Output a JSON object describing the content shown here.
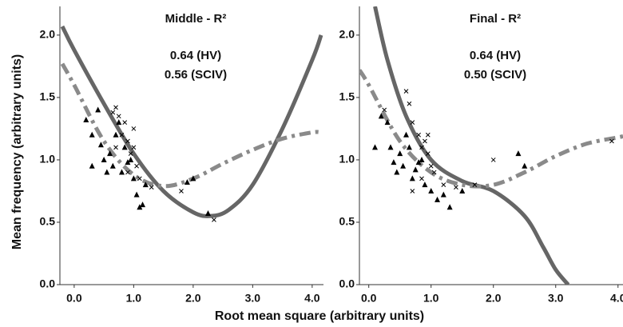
{
  "ylabel": "Mean frequency (arbitrary units)",
  "xlabel": "Root mean square (arbitrary units)",
  "chart_data": [
    {
      "type": "scatter",
      "title": "Middle - R²",
      "annotations": [
        "0.64 (HV)",
        "0.56 (SCIV)"
      ],
      "xlim": [
        -0.24,
        4.19
      ],
      "ylim": [
        0,
        2.23
      ],
      "xticks": [
        {
          "value": 0,
          "label": "0.0"
        },
        {
          "value": 1,
          "label": "1.0"
        },
        {
          "value": 2,
          "label": "2.0"
        },
        {
          "value": 3,
          "label": "3.0"
        },
        {
          "value": 4,
          "label": "4.0"
        }
      ],
      "yticks": [
        {
          "value": 0,
          "label": "0.0"
        },
        {
          "value": 0.5,
          "label": "0.5"
        },
        {
          "value": 1,
          "label": "1.0"
        },
        {
          "value": 1.5,
          "label": "1.5"
        },
        {
          "value": 2,
          "label": "2.0"
        }
      ],
      "series": [
        {
          "marker": "triangle",
          "color": "#000000",
          "x": [
            0.2,
            0.3,
            0.4,
            0.45,
            0.5,
            0.55,
            0.6,
            0.65,
            0.7,
            0.75,
            0.8,
            0.85,
            0.9,
            0.95,
            1.0,
            1.05,
            1.1,
            1.15,
            1.2,
            0.3,
            1.9,
            2.0,
            2.25
          ],
          "values": [
            1.32,
            1.2,
            1.4,
            1.12,
            1.0,
            0.9,
            1.05,
            0.95,
            1.2,
            1.3,
            0.9,
            1.1,
            0.98,
            1.0,
            0.85,
            0.72,
            0.62,
            0.64,
            0.8,
            0.95,
            0.82,
            0.85,
            0.57
          ]
        },
        {
          "marker": "cross",
          "color": "#000000",
          "x": [
            0.65,
            0.7,
            0.75,
            0.8,
            0.85,
            0.9,
            0.95,
            1.0,
            0.9,
            1.05,
            1.1,
            0.7,
            1.3,
            1.8,
            2.35,
            1.0
          ],
          "values": [
            1.38,
            1.42,
            1.35,
            1.2,
            1.3,
            1.15,
            1.05,
            1.1,
            0.9,
            0.95,
            0.85,
            1.1,
            0.78,
            0.75,
            0.52,
            1.25
          ]
        },
        {
          "line": "solid",
          "color": "#666666",
          "x": [
            -0.2,
            0,
            0.5,
            1.0,
            1.5,
            2.0,
            2.3,
            2.6,
            3.0,
            3.5,
            4.0,
            4.15
          ],
          "values": [
            2.07,
            1.88,
            1.45,
            1.05,
            0.75,
            0.58,
            0.55,
            0.6,
            0.8,
            1.25,
            1.8,
            2.0
          ]
        },
        {
          "line": "dashdot",
          "color": "#8a8a8a",
          "x": [
            -0.2,
            0,
            0.5,
            1.0,
            1.5,
            2.0,
            2.5,
            3.0,
            3.5,
            4.0,
            4.15
          ],
          "values": [
            1.77,
            1.6,
            1.15,
            0.88,
            0.79,
            0.85,
            0.97,
            1.08,
            1.17,
            1.22,
            1.22
          ]
        }
      ]
    },
    {
      "type": "scatter",
      "title": "Final - R²",
      "annotations": [
        "0.64 (HV)",
        "0.50 (SCIV)"
      ],
      "xlim": [
        -0.15,
        4.08
      ],
      "ylim": [
        0,
        2.23
      ],
      "xticks": [
        {
          "value": 0,
          "label": "0.0"
        },
        {
          "value": 1,
          "label": "1.0"
        },
        {
          "value": 2,
          "label": "2.0"
        },
        {
          "value": 3,
          "label": "3.0"
        },
        {
          "value": 4,
          "label": "4.0"
        }
      ],
      "yticks": [
        {
          "value": 0,
          "label": "0.0"
        },
        {
          "value": 0.5,
          "label": "0.5"
        },
        {
          "value": 1,
          "label": "1.0"
        },
        {
          "value": 1.5,
          "label": "1.5"
        },
        {
          "value": 2,
          "label": "2.0"
        }
      ],
      "series": [
        {
          "marker": "triangle",
          "color": "#000000",
          "x": [
            0.2,
            0.3,
            0.35,
            0.4,
            0.45,
            0.5,
            0.55,
            0.6,
            0.65,
            0.7,
            0.75,
            0.8,
            0.85,
            0.9,
            1.0,
            1.1,
            1.2,
            1.3,
            1.5,
            2.4,
            2.5,
            0.1
          ],
          "values": [
            1.35,
            1.3,
            1.1,
            0.98,
            0.9,
            1.05,
            0.95,
            1.2,
            1.1,
            0.85,
            0.92,
            0.98,
            1.0,
            0.8,
            0.75,
            0.68,
            0.72,
            0.62,
            0.75,
            1.05,
            0.95,
            1.1
          ]
        },
        {
          "marker": "cross",
          "color": "#000000",
          "x": [
            0.25,
            0.6,
            0.65,
            0.7,
            0.8,
            0.85,
            0.9,
            0.95,
            1.0,
            1.05,
            0.85,
            0.7,
            1.2,
            1.4,
            1.7,
            2.0,
            3.9,
            0.95
          ],
          "values": [
            1.4,
            1.55,
            1.45,
            1.3,
            1.2,
            1.1,
            1.15,
            1.05,
            0.95,
            0.9,
            0.85,
            0.75,
            0.8,
            0.78,
            0.8,
            1.0,
            1.15,
            1.2
          ]
        },
        {
          "line": "solid",
          "color": "#666666",
          "x": [
            0.1,
            0.3,
            0.6,
            1.0,
            1.5,
            2.0,
            2.5,
            2.8,
            3.0,
            3.2
          ],
          "values": [
            2.23,
            1.8,
            1.35,
            1.0,
            0.83,
            0.75,
            0.55,
            0.3,
            0.12,
            0.0
          ]
        },
        {
          "line": "dashdot",
          "color": "#8a8a8a",
          "x": [
            -0.15,
            0,
            0.5,
            1.0,
            1.5,
            2.0,
            2.5,
            3.0,
            3.5,
            4.0,
            4.08
          ],
          "values": [
            1.72,
            1.6,
            1.15,
            0.9,
            0.8,
            0.8,
            0.9,
            1.03,
            1.13,
            1.18,
            1.19
          ]
        }
      ]
    }
  ]
}
